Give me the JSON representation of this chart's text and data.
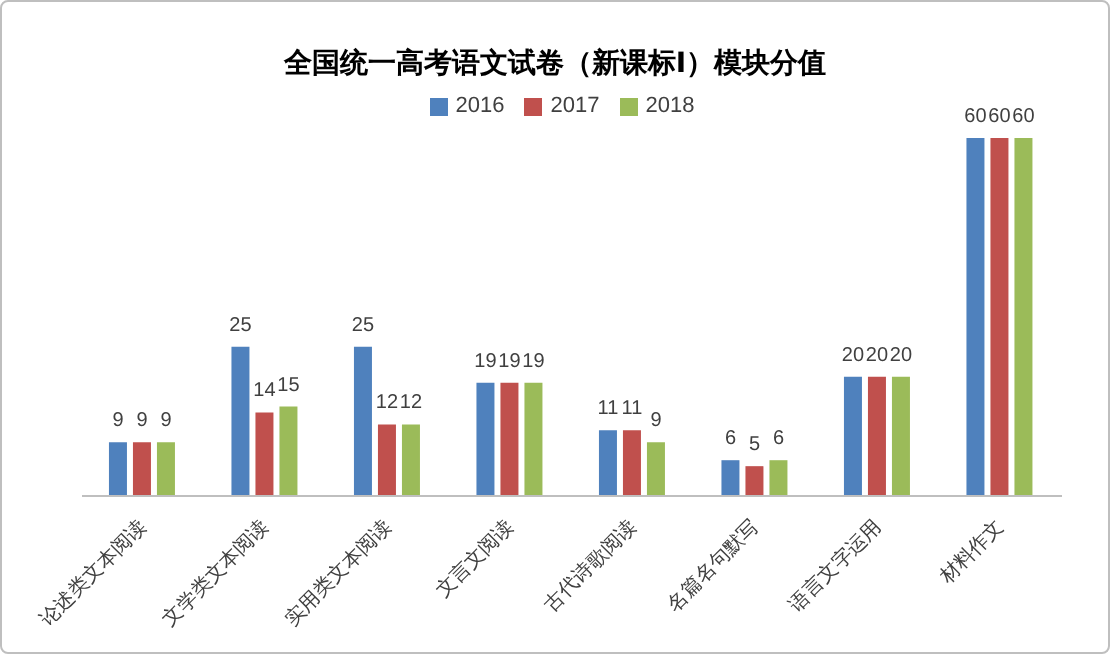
{
  "chart_data": {
    "type": "bar",
    "title": "全国统一高考语文试卷（新课标Ⅰ）模块分值",
    "categories": [
      "论述类文本阅读",
      "文学类文本阅读",
      "实用类文本阅读",
      "文言文阅读",
      "古代诗歌阅读",
      "名篇名句默写",
      "语言文字运用",
      "材料作文"
    ],
    "series": [
      {
        "name": "2016",
        "color": "#4f81bd",
        "values": [
          9,
          25,
          25,
          19,
          11,
          6,
          20,
          60
        ]
      },
      {
        "name": "2017",
        "color": "#c0504d",
        "values": [
          9,
          14,
          12,
          19,
          11,
          5,
          20,
          60
        ]
      },
      {
        "name": "2018",
        "color": "#9bbb59",
        "values": [
          9,
          15,
          12,
          19,
          9,
          6,
          20,
          60
        ]
      }
    ],
    "data_labels": true,
    "legend": "top",
    "grid": false
  }
}
